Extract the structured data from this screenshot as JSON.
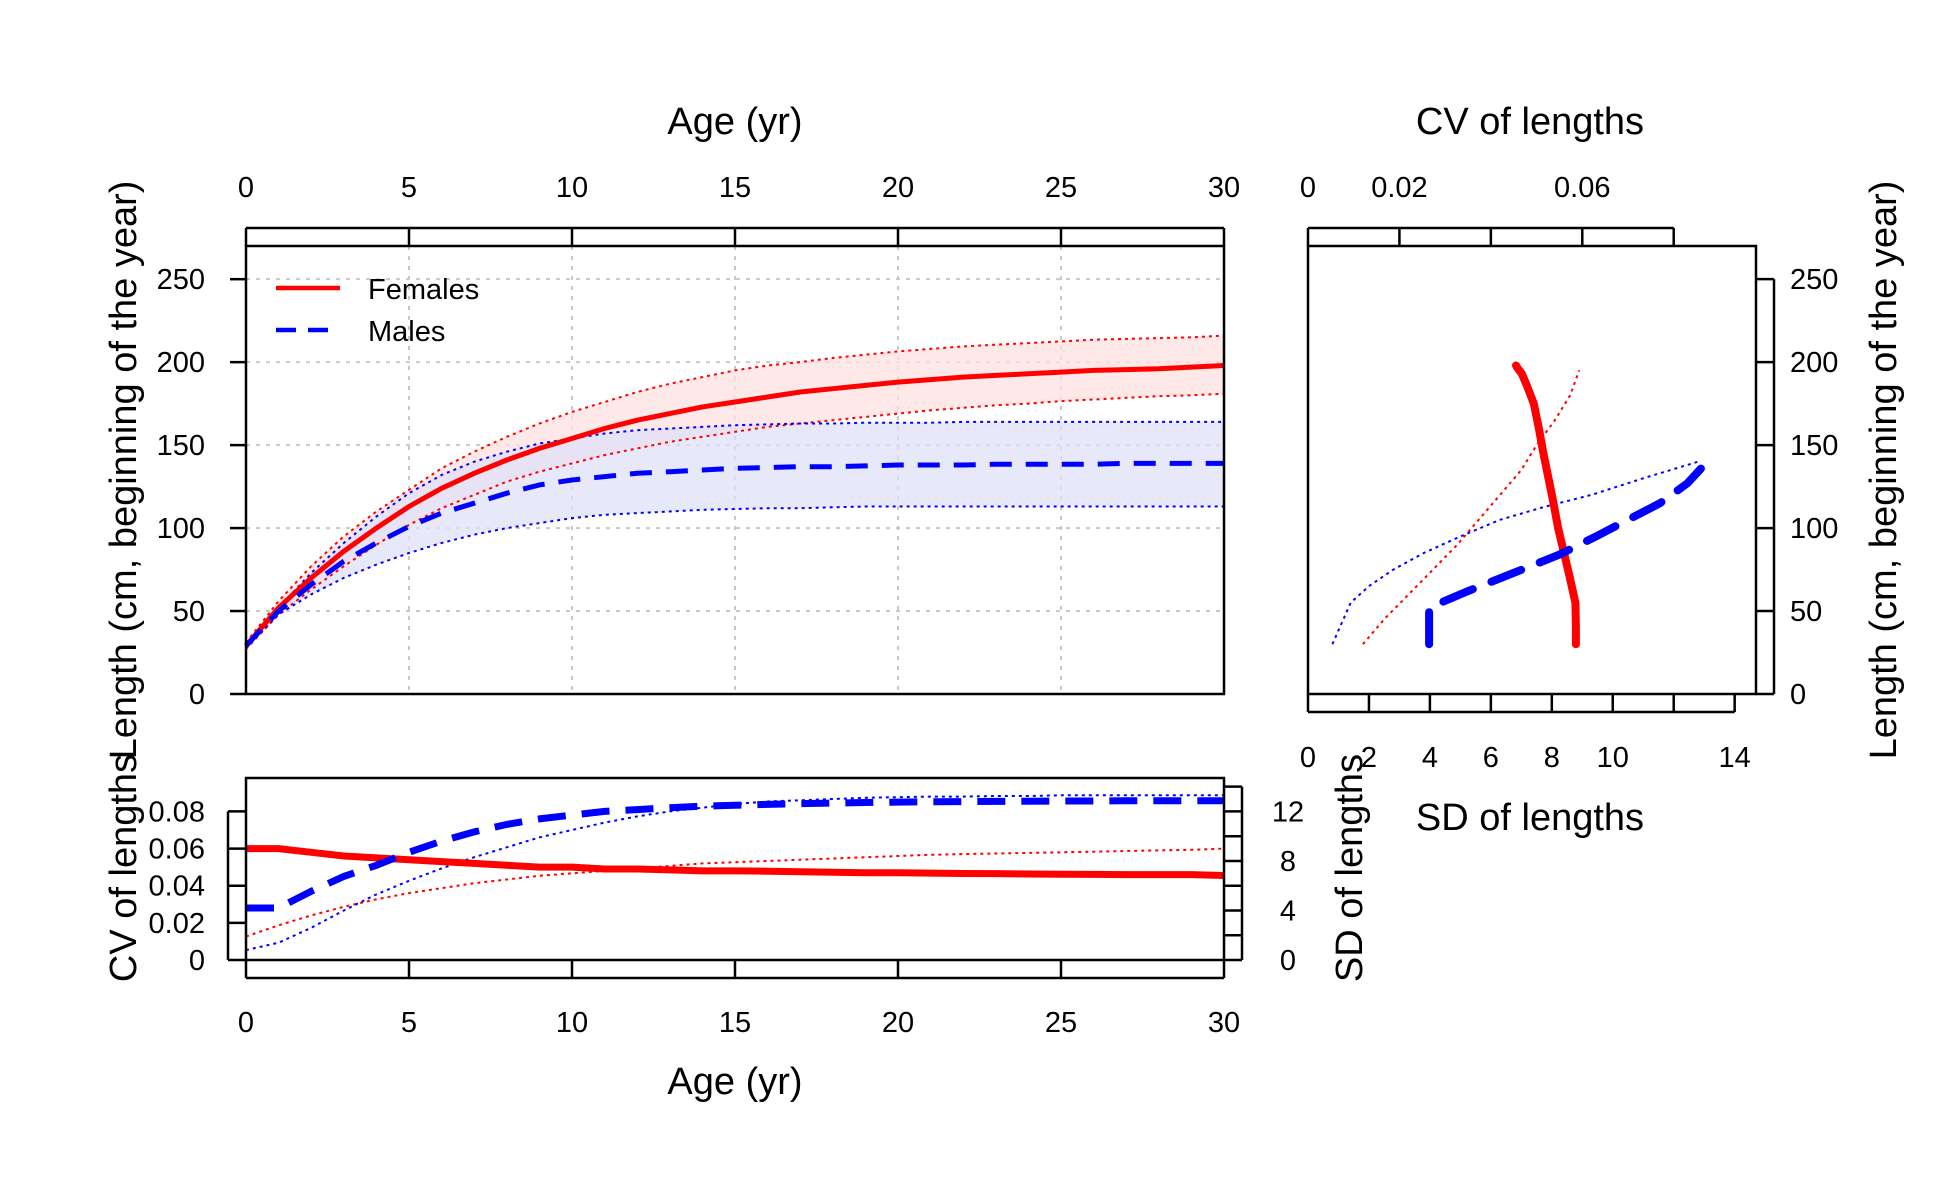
{
  "chart_data": [
    {
      "id": "main",
      "type": "line",
      "title": "",
      "xlabel": "Age (yr)",
      "ylabel": "Length (cm, beginning of the year)",
      "xlim": [
        0,
        30
      ],
      "ylim": [
        0,
        270
      ],
      "xticks": [
        0,
        5,
        10,
        15,
        20,
        25,
        30
      ],
      "yticks": [
        0,
        50,
        100,
        150,
        200,
        250
      ],
      "grid": true,
      "legend_position": "top-left",
      "x": [
        0,
        1,
        2,
        3,
        4,
        5,
        6,
        7,
        8,
        9,
        10,
        11,
        12,
        13,
        14,
        15,
        16,
        17,
        18,
        19,
        20,
        21,
        22,
        23,
        24,
        25,
        26,
        27,
        28,
        29,
        30
      ],
      "series": [
        {
          "name": "Females",
          "color": "#ff0000",
          "fill": "#ffe0e0",
          "mean": [
            29,
            52,
            70,
            86,
            100,
            113,
            124,
            133,
            141,
            148,
            154,
            160,
            165,
            169,
            173,
            176,
            179,
            182,
            184,
            186,
            188,
            189.5,
            191,
            192,
            193,
            194,
            195,
            195.5,
            196,
            197,
            198
          ],
          "upper": [
            31,
            56,
            77,
            95,
            110,
            123,
            136,
            146,
            155,
            163,
            170,
            176,
            182,
            187,
            191,
            195,
            198,
            200,
            202.5,
            204.5,
            206.5,
            208,
            209.5,
            210.5,
            211.5,
            212.5,
            213.5,
            214,
            214.5,
            215,
            216
          ],
          "lower": [
            27,
            48,
            63,
            77,
            90,
            102,
            112,
            120,
            128,
            134,
            139,
            144,
            148,
            152,
            155,
            158,
            161,
            163,
            165,
            167,
            169,
            171,
            172.5,
            174,
            175,
            176.5,
            177.5,
            178.5,
            179.5,
            180,
            181
          ]
        },
        {
          "name": "Males",
          "color": "#0000ff",
          "fill": "#e0e0fa",
          "mean": [
            29,
            50,
            66,
            80,
            91,
            101,
            109,
            115,
            121,
            126,
            129,
            131,
            133,
            134,
            135,
            136,
            136.5,
            137,
            137,
            137.5,
            138,
            138,
            138,
            138.5,
            138.5,
            138.5,
            138.5,
            139,
            139,
            139,
            139
          ],
          "upper": [
            30,
            52,
            73,
            91,
            107,
            121,
            132,
            140,
            146,
            151,
            154,
            157,
            159,
            160,
            161,
            162,
            162.5,
            163,
            163,
            163.5,
            163.5,
            163.5,
            164,
            164,
            164,
            164,
            164,
            164,
            164,
            164,
            164
          ],
          "lower": [
            28,
            48,
            60,
            70,
            78,
            85,
            91,
            96,
            100,
            103,
            106,
            108,
            109,
            110,
            111,
            111.5,
            112,
            112,
            112.5,
            113,
            113,
            113,
            113,
            113,
            113,
            113,
            113,
            113,
            113,
            113,
            113
          ]
        }
      ]
    },
    {
      "id": "variability-by-age",
      "type": "line",
      "title": "",
      "xlabel": "Age (yr)",
      "ylabel_left": "CV of lengths",
      "ylabel_right": "SD of lengths",
      "xlim": [
        0,
        30
      ],
      "ylim_cv": [
        0,
        0.098
      ],
      "ylim_sd": [
        0,
        14.7
      ],
      "xticks": [
        0,
        5,
        10,
        15,
        20,
        25,
        30
      ],
      "cv_ticks": [
        0,
        0.02,
        0.04,
        0.06,
        0.08
      ],
      "sd_ticks": [
        0,
        4,
        8,
        12
      ],
      "x": [
        0,
        1,
        2,
        3,
        4,
        5,
        6,
        7,
        8,
        9,
        10,
        11,
        12,
        13,
        14,
        15,
        16,
        17,
        18,
        19,
        20,
        21,
        22,
        23,
        24,
        25,
        26,
        27,
        28,
        29,
        30
      ],
      "series": [
        {
          "name": "Females",
          "color": "#ff0000",
          "cv": [
            0.06,
            0.06,
            0.058,
            0.056,
            0.055,
            0.054,
            0.053,
            0.052,
            0.051,
            0.05,
            0.05,
            0.049,
            0.049,
            0.0485,
            0.048,
            0.048,
            0.0478,
            0.0475,
            0.0473,
            0.047,
            0.047,
            0.0468,
            0.0466,
            0.0465,
            0.0463,
            0.0462,
            0.0461,
            0.046,
            0.046,
            0.046,
            0.0455
          ],
          "sd": [
            1.9,
            2.8,
            3.6,
            4.3,
            4.9,
            5.4,
            5.8,
            6.2,
            6.5,
            6.8,
            7.0,
            7.2,
            7.4,
            7.6,
            7.8,
            7.9,
            8.0,
            8.1,
            8.2,
            8.3,
            8.4,
            8.5,
            8.55,
            8.6,
            8.65,
            8.7,
            8.75,
            8.8,
            8.85,
            8.9,
            9.0
          ]
        },
        {
          "name": "Males",
          "color": "#0000ff",
          "cv": [
            0.028,
            0.028,
            0.037,
            0.045,
            0.051,
            0.058,
            0.064,
            0.069,
            0.073,
            0.076,
            0.078,
            0.08,
            0.081,
            0.082,
            0.0828,
            0.0833,
            0.0838,
            0.0842,
            0.0845,
            0.0848,
            0.085,
            0.0852,
            0.0853,
            0.0854,
            0.0855,
            0.0856,
            0.0856,
            0.0857,
            0.0857,
            0.0857,
            0.0857
          ],
          "sd": [
            0.8,
            1.4,
            2.6,
            4.0,
            5.3,
            6.4,
            7.4,
            8.3,
            9.1,
            9.9,
            10.5,
            11.1,
            11.6,
            12.0,
            12.3,
            12.6,
            12.8,
            12.9,
            13.0,
            13.1,
            13.15,
            13.2,
            13.2,
            13.25,
            13.25,
            13.3,
            13.3,
            13.3,
            13.3,
            13.3,
            13.3
          ]
        }
      ]
    },
    {
      "id": "variability-by-length",
      "type": "line",
      "title": "",
      "xlabel_top": "CV of lengths",
      "xlabel_bottom": "SD of lengths",
      "ylabel": "Length (cm, beginning of the year)",
      "ylim": [
        0,
        270
      ],
      "cv_lim": [
        0,
        0.098
      ],
      "sd_lim": [
        0,
        14.7
      ],
      "cv_ticks": [
        0,
        0.02,
        0.04,
        0.06,
        0.08
      ],
      "cv_tick_labels": [
        "0",
        "0.02",
        "",
        "0.06",
        ""
      ],
      "sd_ticks": [
        0,
        2,
        4,
        6,
        8,
        10,
        12,
        14
      ],
      "sd_tick_labels": [
        "0",
        "2",
        "4",
        "6",
        "8",
        "10",
        "",
        "14"
      ],
      "yticks": [
        0,
        50,
        100,
        150,
        200,
        250
      ],
      "series": [
        {
          "name": "Females",
          "color": "#ff0000",
          "cv": [
            0.0586,
            0.0586,
            0.0585,
            0.0573,
            0.056,
            0.0547,
            0.0537,
            0.0526,
            0.0515,
            0.0505,
            0.0494,
            0.048,
            0.0468,
            0.0457,
            0.0455
          ],
          "length": [
            30,
            40,
            55,
            70,
            85,
            100,
            115,
            130,
            145,
            160,
            175,
            185,
            193,
            197,
            198
          ],
          "sd": [
            1.8,
            2.5,
            3.3,
            4.1,
            4.9,
            5.6,
            6.3,
            7.0,
            7.5,
            8.1,
            8.6,
            8.9
          ],
          "sd_length": [
            30,
            45,
            60,
            75,
            90,
            105,
            120,
            135,
            150,
            165,
            180,
            195
          ]
        },
        {
          "name": "Males",
          "color": "#0000ff",
          "cv": [
            0.0265,
            0.0265,
            0.0265,
            0.035,
            0.045,
            0.055,
            0.063,
            0.07,
            0.077,
            0.083,
            0.087
          ],
          "length": [
            30,
            40,
            52,
            62,
            73,
            84,
            95,
            105,
            115,
            127,
            139
          ],
          "sd": [
            0.8,
            1.4,
            2.0,
            2.8,
            3.8,
            5.0,
            6.3,
            7.8,
            9.3,
            11.0,
            12.8
          ],
          "sd_length": [
            30,
            55,
            65,
            75,
            85,
            95,
            105,
            113,
            120,
            130,
            140
          ]
        }
      ]
    }
  ]
}
